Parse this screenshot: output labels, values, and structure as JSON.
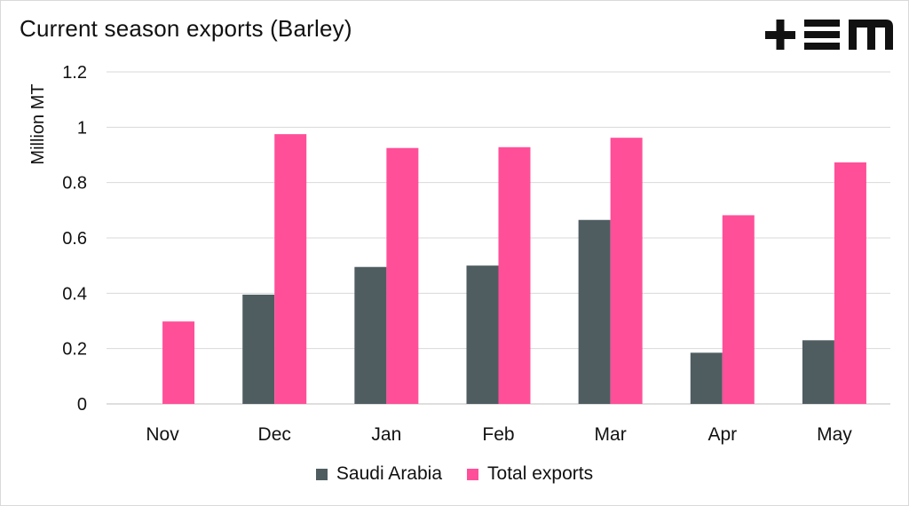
{
  "title": "Current season exports (Barley)",
  "logo_text": "+EM",
  "colors": {
    "saudi": "#4f5d61",
    "total": "#ff4f99",
    "grid": "#d9d9d9",
    "text": "#111111"
  },
  "chart_data": {
    "type": "bar",
    "title": "Current season exports (Barley)",
    "xlabel": "",
    "ylabel": "Million MT",
    "ylim": [
      0,
      1.2
    ],
    "yticks": [
      0,
      0.2,
      0.4,
      0.6,
      0.8,
      1,
      1.2
    ],
    "ytick_labels": [
      "0",
      "0.2",
      "0.4",
      "0.6",
      "0.8",
      "1",
      "1.2"
    ],
    "grid": true,
    "legend_position": "bottom",
    "categories": [
      "Nov",
      "Dec",
      "Jan",
      "Feb",
      "Mar",
      "Apr",
      "May"
    ],
    "series": [
      {
        "name": "Saudi Arabia",
        "values": [
          0,
          0.395,
          0.495,
          0.5,
          0.665,
          0.185,
          0.23
        ]
      },
      {
        "name": "Total exports",
        "values": [
          0.298,
          0.975,
          0.925,
          0.928,
          0.962,
          0.682,
          0.873
        ]
      }
    ]
  }
}
